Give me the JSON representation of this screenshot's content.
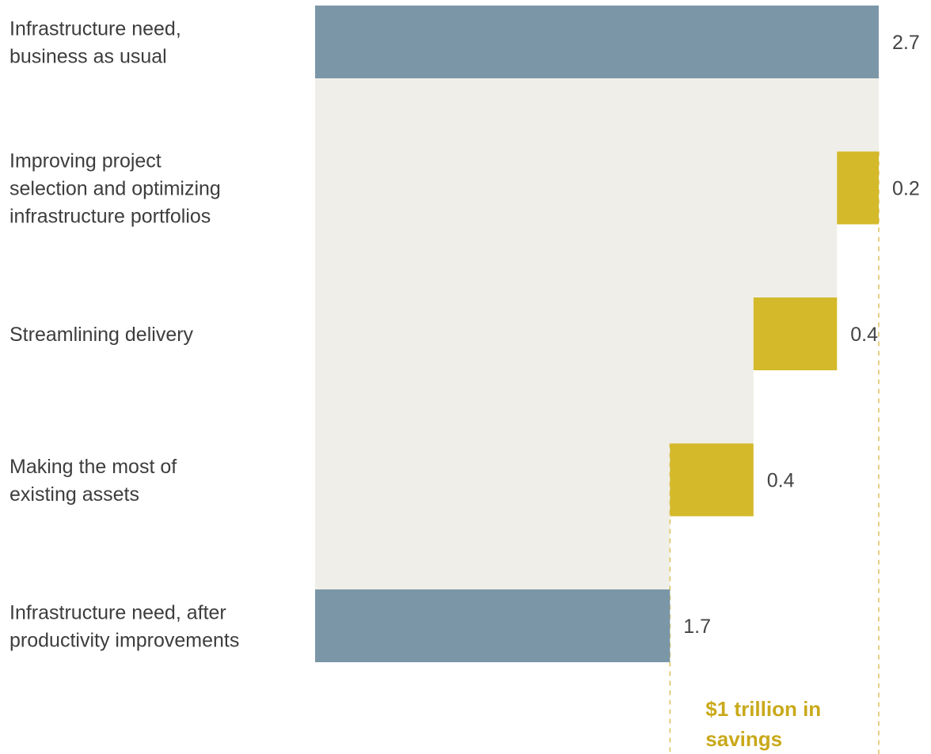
{
  "chart_data": {
    "type": "bar",
    "subtype": "waterfall",
    "orientation": "horizontal",
    "categories": [
      [
        "Infrastructure need,",
        "business as usual"
      ],
      [
        "Improving project",
        "selection and optimizing",
        "infrastructure portfolios"
      ],
      [
        "Streamlining delivery"
      ],
      [
        "Making the most of",
        "existing assets"
      ],
      [
        "Infrastructure need, after",
        "productivity improvements"
      ]
    ],
    "values": [
      2.7,
      -0.2,
      -0.4,
      -0.4,
      1.7
    ],
    "bar_kinds": [
      "total",
      "decrease",
      "decrease",
      "decrease",
      "total"
    ],
    "value_labels": [
      "2.7",
      "0.2",
      "0.4",
      "0.4",
      "1.7"
    ],
    "xlim": [
      0,
      2.7
    ],
    "annotation": [
      "$1 trillion in",
      "savings"
    ],
    "colors": {
      "total": "#7b97a7",
      "decrease": "#d4b92a",
      "background": "#efeee8",
      "annotation": "#c9a91a",
      "guide_line": "#e0c15a"
    },
    "grid": false,
    "legend": "none"
  }
}
